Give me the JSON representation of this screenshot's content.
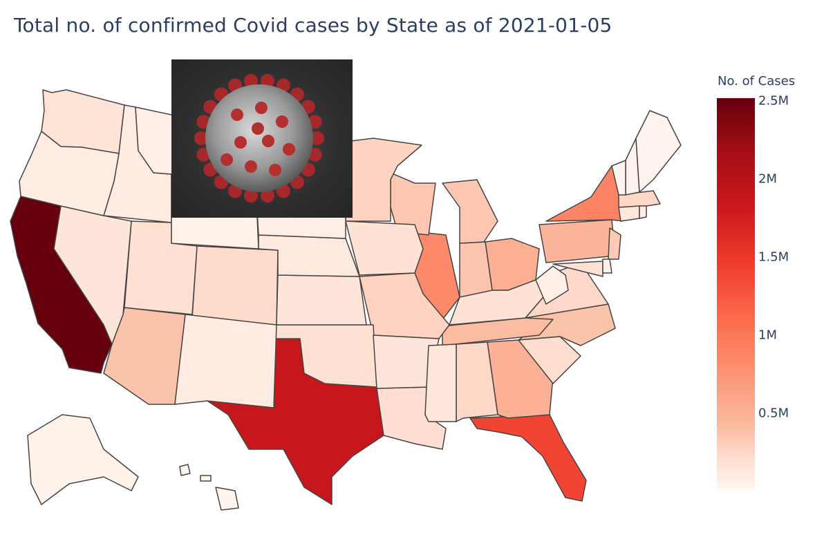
{
  "title": "Total no. of confirmed Covid cases by State as of 2021-01-05",
  "colorbar": {
    "title": "No. of Cases",
    "ticks": [
      {
        "label": "2.5M",
        "value": 2500000
      },
      {
        "label": "2M",
        "value": 2000000
      },
      {
        "label": "1.5M",
        "value": 1500000
      },
      {
        "label": "1M",
        "value": 1000000
      },
      {
        "label": "0.5M",
        "value": 500000
      }
    ],
    "range": [
      0,
      2500000
    ],
    "colorscale": "Reds"
  },
  "image": {
    "subject": "coronavirus illustration",
    "icon": "virus-image"
  },
  "chart_data": {
    "type": "choropleth",
    "title": "Total no. of confirmed Covid cases by State as of 2021-01-05",
    "colorbar_title": "No. of Cases",
    "states": [
      {
        "state": "CA",
        "cases": 2500000
      },
      {
        "state": "TX",
        "cases": 1900000
      },
      {
        "state": "FL",
        "cases": 1500000
      },
      {
        "state": "NY",
        "cases": 1050000
      },
      {
        "state": "IL",
        "cases": 1000000
      },
      {
        "state": "GA",
        "cases": 700000
      },
      {
        "state": "OH",
        "cases": 720000
      },
      {
        "state": "PA",
        "cases": 670000
      },
      {
        "state": "NJ",
        "cases": 500000
      },
      {
        "state": "AZ",
        "cases": 560000
      },
      {
        "state": "NC",
        "cases": 560000
      },
      {
        "state": "TN",
        "cases": 620000
      },
      {
        "state": "IN",
        "cases": 540000
      },
      {
        "state": "MI",
        "cases": 530000
      },
      {
        "state": "WI",
        "cases": 520000
      },
      {
        "state": "MN",
        "cases": 420000
      },
      {
        "state": "MO",
        "cases": 430000
      },
      {
        "state": "AL",
        "cases": 380000
      },
      {
        "state": "VA",
        "cases": 370000
      },
      {
        "state": "SC",
        "cases": 330000
      },
      {
        "state": "LA",
        "cases": 320000
      },
      {
        "state": "MA",
        "cases": 390000
      },
      {
        "state": "CO",
        "cases": 350000
      },
      {
        "state": "KY",
        "cases": 280000
      },
      {
        "state": "OK",
        "cases": 300000
      },
      {
        "state": "IA",
        "cases": 290000
      },
      {
        "state": "MD",
        "cases": 300000
      },
      {
        "state": "UT",
        "cases": 300000
      },
      {
        "state": "WA",
        "cases": 260000
      },
      {
        "state": "AR",
        "cases": 240000
      },
      {
        "state": "KS",
        "cases": 240000
      },
      {
        "state": "NV",
        "cases": 240000
      },
      {
        "state": "MS",
        "cases": 220000
      },
      {
        "state": "NE",
        "cases": 180000
      },
      {
        "state": "CT",
        "cases": 200000
      },
      {
        "state": "NM",
        "cases": 150000
      },
      {
        "state": "ID",
        "cases": 150000
      },
      {
        "state": "OR",
        "cases": 120000
      },
      {
        "state": "SD",
        "cases": 110000
      },
      {
        "state": "ND",
        "cases": 95000
      },
      {
        "state": "MT",
        "cases": 85000
      },
      {
        "state": "WV",
        "cases": 90000
      },
      {
        "state": "RI",
        "cases": 95000
      },
      {
        "state": "DE",
        "cases": 60000
      },
      {
        "state": "NH",
        "cases": 50000
      },
      {
        "state": "AK",
        "cases": 50000
      },
      {
        "state": "ME",
        "cases": 25000
      },
      {
        "state": "WY",
        "cases": 47000
      },
      {
        "state": "HI",
        "cases": 22000
      },
      {
        "state": "VT",
        "cases": 8000
      }
    ]
  }
}
